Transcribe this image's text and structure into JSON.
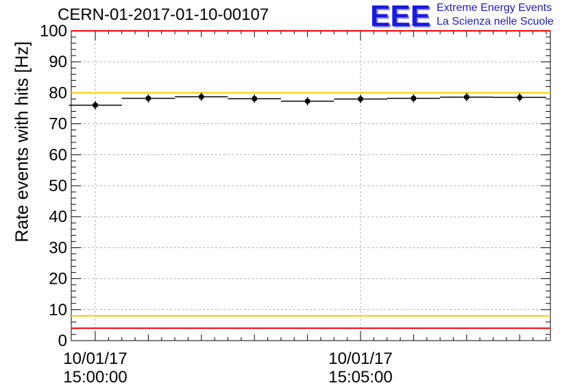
{
  "title": "CERN-01-2017-01-10-00107",
  "logo": {
    "mark": "EEE",
    "line1": "Extreme Energy Events",
    "line2": "La Scienza nelle Scuole",
    "color": "#1a1acc"
  },
  "chart_data": {
    "type": "scatter",
    "title": "CERN-01-2017-01-10-00107",
    "xlabel": "",
    "ylabel": "Rate events with hits [Hz]",
    "ylim": [
      0,
      100
    ],
    "y_ticks": [
      "0",
      "10",
      "20",
      "30",
      "40",
      "50",
      "60",
      "70",
      "80",
      "90",
      "100"
    ],
    "x_tick_labels": [
      {
        "date": "10/01/17",
        "time": "15:00:00"
      },
      {
        "date": "10/01/17",
        "time": "15:05:00"
      }
    ],
    "grid": true,
    "series": [
      {
        "marker": "circle",
        "color": "#000000",
        "bin_width_seconds": 60,
        "points": [
          {
            "x": "15:00:00",
            "y": 76.0
          },
          {
            "x": "15:01:00",
            "y": 78.2
          },
          {
            "x": "15:02:00",
            "y": 78.7
          },
          {
            "x": "15:03:00",
            "y": 78.1
          },
          {
            "x": "15:04:00",
            "y": 77.3
          },
          {
            "x": "15:05:00",
            "y": 78.0
          },
          {
            "x": "15:06:00",
            "y": 78.2
          },
          {
            "x": "15:07:00",
            "y": 78.6
          },
          {
            "x": "15:08:00",
            "y": 78.5
          }
        ]
      }
    ],
    "reference_lines": [
      {
        "y": 100,
        "color": "#ff0000"
      },
      {
        "y": 80,
        "color": "#ffcc00"
      },
      {
        "y": 8,
        "color": "#ffcc00"
      },
      {
        "y": 4,
        "color": "#ff0000"
      }
    ]
  }
}
